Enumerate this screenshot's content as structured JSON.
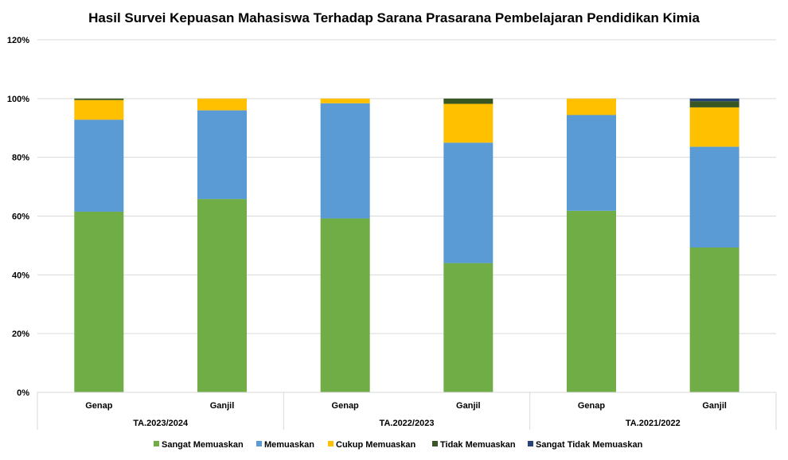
{
  "chart_data": {
    "type": "bar",
    "stacked": true,
    "title": "Hasil Survei Kepuasan Mahasiswa Terhadap Sarana Prasarana Pembelajaran Pendidikan Kimia",
    "categories": [
      "Genap",
      "Ganjil",
      "Genap",
      "Ganjil",
      "Genap",
      "Ganjil"
    ],
    "groups": [
      {
        "label": "TA.2023/2024",
        "count": 2
      },
      {
        "label": "TA.2022/2023",
        "count": 2
      },
      {
        "label": "TA.2021/2022",
        "count": 2
      }
    ],
    "y_ticks": [
      "0%",
      "20%",
      "40%",
      "60%",
      "80%",
      "100%",
      "120%"
    ],
    "ylim": [
      0,
      120
    ],
    "y_unit": "%",
    "grid": true,
    "legend_position": "bottom",
    "series": [
      {
        "name": "Sangat Memuaskan",
        "color": "#70AD47",
        "values": [
          61.5,
          65.8,
          59.2,
          44.0,
          61.8,
          49.3
        ]
      },
      {
        "name": "Memuaskan",
        "color": "#5B9BD5",
        "values": [
          31.3,
          30.2,
          39.2,
          41.0,
          32.6,
          34.3
        ]
      },
      {
        "name": "Cukup Memuaskan",
        "color": "#FFC000",
        "values": [
          6.7,
          4.0,
          1.6,
          13.2,
          5.6,
          13.4
        ]
      },
      {
        "name": "Tidak Memuaskan",
        "color": "#375623",
        "values": [
          0.5,
          0.0,
          0.0,
          1.8,
          0.0,
          2.1
        ]
      },
      {
        "name": "Sangat Tidak Memuaskan",
        "color": "#264478",
        "values": [
          0.0,
          0.0,
          0.0,
          0.0,
          0.0,
          0.9
        ]
      }
    ]
  }
}
